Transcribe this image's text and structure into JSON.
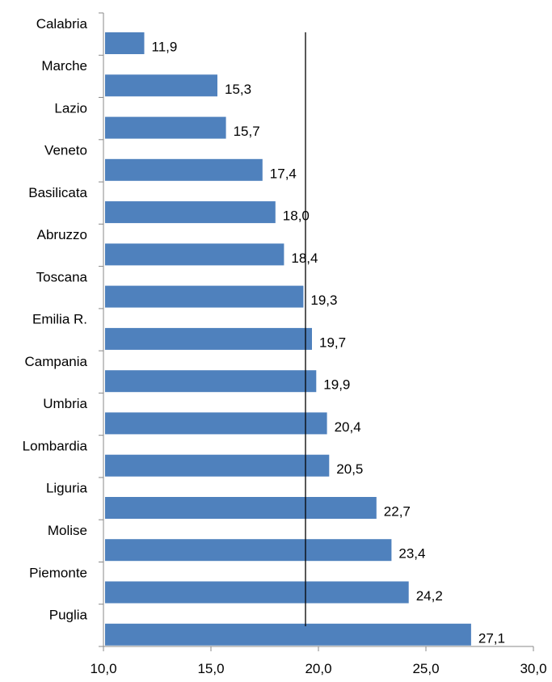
{
  "chart_data": {
    "type": "bar",
    "orientation": "horizontal",
    "categories": [
      "Calabria",
      "Marche",
      "Lazio",
      "Veneto",
      "Basilicata",
      "Abruzzo",
      "Toscana",
      "Emilia R.",
      "Campania",
      "Umbria",
      "Lombardia",
      "Liguria",
      "Molise",
      "Piemonte",
      "Puglia"
    ],
    "values": [
      11.9,
      15.3,
      15.7,
      17.4,
      18.0,
      18.4,
      19.3,
      19.7,
      19.9,
      20.4,
      20.5,
      22.7,
      23.4,
      24.2,
      27.1
    ],
    "value_labels": [
      "11,9",
      "15,3",
      "15,7",
      "17,4",
      "18,0",
      "18,4",
      "19,3",
      "19,7",
      "19,9",
      "20,4",
      "20,5",
      "22,7",
      "23,4",
      "24,2",
      "27,1"
    ],
    "x_ticks": [
      10,
      15,
      20,
      25,
      30
    ],
    "x_tick_labels": [
      "10,0",
      "15,0",
      "20,0",
      "25,0",
      "30,0"
    ],
    "xlim": [
      10,
      30
    ],
    "reference_line": 19.4,
    "bar_color": "#4f81bd",
    "grid": false,
    "legend": "none"
  }
}
